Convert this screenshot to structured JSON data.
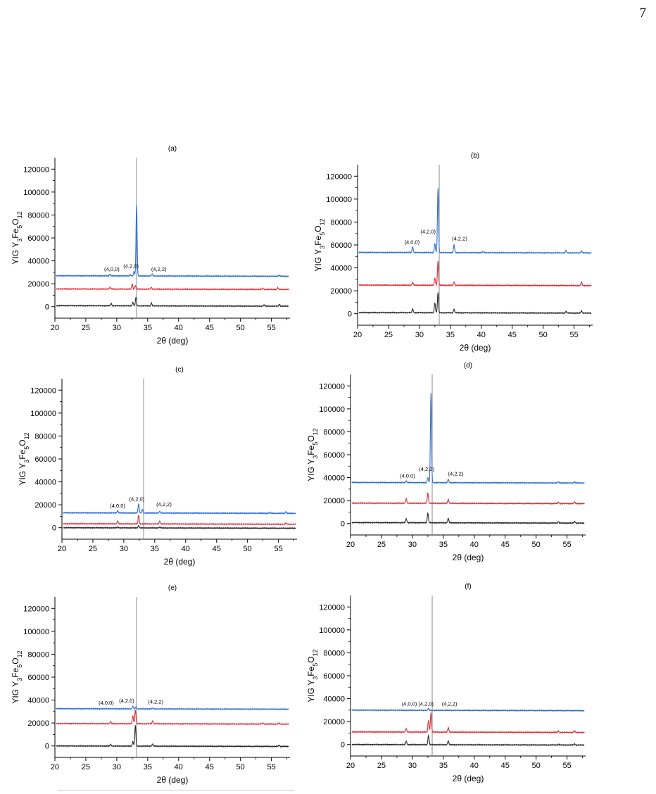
{
  "page_number": "7",
  "colors": {
    "blue": "#2f6fd6",
    "red": "#e0303a",
    "black": "#2b2b2b",
    "vline": "#8a8a8a"
  },
  "chart_data": [
    {
      "type": "line",
      "title": "(a)",
      "xlabel": "2θ (deg)",
      "ylabel": "YIG Y3Fe5O12",
      "xlim": [
        20,
        58
      ],
      "ylim": [
        -10000,
        130000
      ],
      "xticks": [
        20,
        25,
        30,
        35,
        40,
        45,
        50,
        55
      ],
      "yticks": [
        0,
        20000,
        40000,
        60000,
        80000,
        100000,
        120000
      ],
      "vline": 33.2,
      "series": [
        {
          "color": "blue",
          "baseline": 27000,
          "peaks": [
            [
              28.9,
              1500
            ],
            [
              32.2,
              1000
            ],
            [
              32.8,
              4000
            ],
            [
              33.2,
              62000
            ],
            [
              35.7,
              1500
            ],
            [
              56.2,
              900
            ]
          ]
        },
        {
          "color": "red",
          "baseline": 15500,
          "peaks": [
            [
              28.9,
              1500
            ],
            [
              32.5,
              4500
            ],
            [
              33.0,
              3000
            ],
            [
              35.6,
              1500
            ],
            [
              53.6,
              1000
            ],
            [
              56.0,
              1500
            ]
          ]
        },
        {
          "color": "black",
          "baseline": 900,
          "peaks": [
            [
              29.1,
              2000
            ],
            [
              32.6,
              3000
            ],
            [
              33.1,
              7500
            ],
            [
              35.6,
              2500
            ],
            [
              53.8,
              1000
            ],
            [
              56.3,
              1500
            ]
          ]
        }
      ],
      "annotations": [
        {
          "text": "(4,0,0)",
          "x": 29.2,
          "y": 31000
        },
        {
          "text": "(4,2,0)",
          "x": 32.3,
          "y": 34000
        },
        {
          "text": "(4,2,2)",
          "x": 36.8,
          "y": 31000
        }
      ]
    },
    {
      "type": "line",
      "title": "(b)",
      "xlabel": "2θ (deg)",
      "ylabel": "YIG Y3Fe5O12",
      "xlim": [
        20,
        58
      ],
      "ylim": [
        -10000,
        130000
      ],
      "xticks": [
        20,
        25,
        30,
        35,
        40,
        45,
        50,
        55
      ],
      "yticks": [
        0,
        20000,
        40000,
        60000,
        80000,
        100000,
        120000
      ],
      "vline": 33.2,
      "series": [
        {
          "color": "blue",
          "baseline": 53500,
          "peaks": [
            [
              28.9,
              5000
            ],
            [
              32.5,
              8000
            ],
            [
              33.0,
              56000
            ],
            [
              35.6,
              7000
            ],
            [
              40.3,
              1000
            ],
            [
              53.7,
              2000
            ],
            [
              56.2,
              1800
            ]
          ]
        },
        {
          "color": "red",
          "baseline": 25000,
          "peaks": [
            [
              28.9,
              2500
            ],
            [
              32.5,
              6000
            ],
            [
              33.0,
              21000
            ],
            [
              35.6,
              3000
            ],
            [
              56.2,
              3000
            ]
          ]
        },
        {
          "color": "black",
          "baseline": 1000,
          "peaks": [
            [
              28.9,
              3500
            ],
            [
              32.5,
              8500
            ],
            [
              33.0,
              17500
            ],
            [
              35.6,
              3000
            ],
            [
              53.7,
              1500
            ],
            [
              56.2,
              2000
            ]
          ]
        }
      ],
      "annotations": [
        {
          "text": "(4,0,0)",
          "x": 28.8,
          "y": 61000
        },
        {
          "text": "(4,2,0)",
          "x": 31.4,
          "y": 70000
        },
        {
          "text": "(4,2,2)",
          "x": 36.5,
          "y": 64000
        }
      ]
    },
    {
      "type": "line",
      "title": "(c)",
      "xlabel": "2θ (deg)",
      "ylabel": "YIG Y3Fe5O12",
      "xlim": [
        20,
        58
      ],
      "ylim": [
        -10000,
        130000
      ],
      "xticks": [
        20,
        25,
        30,
        35,
        40,
        45,
        50,
        55
      ],
      "yticks": [
        0,
        20000,
        40000,
        60000,
        80000,
        100000,
        120000
      ],
      "vline": 33.2,
      "series": [
        {
          "color": "blue",
          "baseline": 13000,
          "peaks": [
            [
              29.0,
              2000
            ],
            [
              32.4,
              8000
            ],
            [
              33.0,
              3000
            ],
            [
              35.8,
              1500
            ],
            [
              53.6,
              800
            ],
            [
              56.2,
              1500
            ]
          ]
        },
        {
          "color": "red",
          "baseline": 3500,
          "peaks": [
            [
              29.0,
              2500
            ],
            [
              32.4,
              7500
            ],
            [
              35.8,
              2500
            ],
            [
              56.2,
              1200
            ]
          ]
        },
        {
          "color": "black",
          "baseline": 0,
          "peaks": [
            [
              29.0,
              700
            ],
            [
              32.4,
              2000
            ],
            [
              35.8,
              800
            ]
          ]
        }
      ],
      "annotations": [
        {
          "text": "(4,0,0)",
          "x": 29.0,
          "y": 17500
        },
        {
          "text": "(4,2,0)",
          "x": 32.1,
          "y": 23500
        },
        {
          "text": "(4,2,2)",
          "x": 36.5,
          "y": 19000
        }
      ]
    },
    {
      "type": "line",
      "title": "(d)",
      "xlabel": "2θ (deg)",
      "ylabel": "YIG Y3Fe5O12",
      "xlim": [
        20,
        58
      ],
      "ylim": [
        -10000,
        130000
      ],
      "xticks": [
        20,
        25,
        30,
        35,
        40,
        45,
        50,
        55
      ],
      "yticks": [
        0,
        20000,
        40000,
        60000,
        80000,
        100000,
        120000
      ],
      "vline": 33.2,
      "series": [
        {
          "color": "blue",
          "baseline": 35800,
          "peaks": [
            [
              29.0,
              1500
            ],
            [
              32.5,
              4500
            ],
            [
              33.0,
              78000
            ],
            [
              35.8,
              3000
            ],
            [
              53.6,
              1000
            ],
            [
              56.2,
              1000
            ]
          ]
        },
        {
          "color": "red",
          "baseline": 17800,
          "peaks": [
            [
              29.0,
              4000
            ],
            [
              32.5,
              9000
            ],
            [
              35.8,
              3500
            ],
            [
              53.6,
              1000
            ],
            [
              56.2,
              1500
            ]
          ]
        },
        {
          "color": "black",
          "baseline": 800,
          "peaks": [
            [
              29.0,
              3500
            ],
            [
              32.5,
              8500
            ],
            [
              35.8,
              4000
            ],
            [
              53.6,
              1200
            ],
            [
              56.2,
              1500
            ]
          ]
        }
      ],
      "annotations": [
        {
          "text": "(4,0,0)",
          "x": 29.2,
          "y": 40000
        },
        {
          "text": "(4,2,0)",
          "x": 32.3,
          "y": 46000
        },
        {
          "text": "(4,2,2)",
          "x": 37.0,
          "y": 42000
        }
      ]
    },
    {
      "type": "line",
      "title": "(e)",
      "xlabel": "2θ (deg)",
      "ylabel": "YIG Y3Fe5O12",
      "xlim": [
        20,
        58
      ],
      "ylim": [
        -10000,
        130000
      ],
      "xticks": [
        20,
        25,
        30,
        35,
        40,
        45,
        50,
        55
      ],
      "yticks": [
        0,
        20000,
        40000,
        60000,
        80000,
        100000,
        120000
      ],
      "vline": 33.2,
      "series": [
        {
          "color": "blue",
          "baseline": 32500,
          "peaks": [
            [
              32.6,
              2500
            ],
            [
              33.1,
              1500
            ],
            [
              35.8,
              800
            ]
          ]
        },
        {
          "color": "red",
          "baseline": 19500,
          "peaks": [
            [
              29.0,
              2000
            ],
            [
              32.6,
              7000
            ],
            [
              33.0,
              12000
            ],
            [
              35.8,
              2500
            ],
            [
              53.6,
              800
            ],
            [
              56.2,
              1000
            ]
          ]
        },
        {
          "color": "black",
          "baseline": 0,
          "peaks": [
            [
              29.0,
              1500
            ],
            [
              32.6,
              4000
            ],
            [
              33.0,
              18000
            ],
            [
              35.8,
              2000
            ],
            [
              56.2,
              1000
            ]
          ]
        }
      ],
      "annotations": [
        {
          "text": "(4,0,0)",
          "x": 28.3,
          "y": 36000
        },
        {
          "text": "(4,2,0)",
          "x": 31.6,
          "y": 38000
        },
        {
          "text": "(4,2,2)",
          "x": 36.3,
          "y": 37000
        }
      ]
    },
    {
      "type": "line",
      "title": "(f)",
      "xlabel": "2θ (deg)",
      "ylabel": "YIG Y3Fe5O12",
      "xlim": [
        20,
        58
      ],
      "ylim": [
        -10000,
        130000
      ],
      "xticks": [
        20,
        25,
        30,
        35,
        40,
        45,
        50,
        55
      ],
      "yticks": [
        0,
        20000,
        40000,
        60000,
        80000,
        100000,
        120000
      ],
      "vline": 33.2,
      "series": [
        {
          "color": "blue",
          "baseline": 30000,
          "peaks": [
            [
              32.6,
              1500
            ]
          ]
        },
        {
          "color": "red",
          "baseline": 11000,
          "peaks": [
            [
              29.0,
              3000
            ],
            [
              32.6,
              10000
            ],
            [
              33.0,
              17000
            ],
            [
              35.8,
              4000
            ],
            [
              53.6,
              1000
            ],
            [
              56.2,
              1500
            ]
          ]
        },
        {
          "color": "black",
          "baseline": 0,
          "peaks": [
            [
              29.0,
              3000
            ],
            [
              32.6,
              8000
            ],
            [
              35.8,
              3500
            ],
            [
              53.6,
              800
            ],
            [
              56.2,
              1000
            ]
          ]
        }
      ],
      "annotations": [
        {
          "text": "(4,0,0)",
          "x": 29.5,
          "y": 34000
        },
        {
          "text": "(4,2,0)",
          "x": 32.2,
          "y": 34000
        },
        {
          "text": "(4,2,2)",
          "x": 36.0,
          "y": 34000
        }
      ]
    }
  ]
}
